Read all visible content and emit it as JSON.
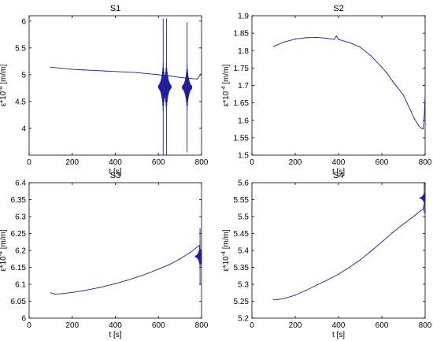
{
  "chart_data": [
    {
      "type": "line",
      "title": "S1",
      "xlabel": "t [s]",
      "ylabel": "ε*10^-4 [m/m]",
      "ylabel_main": "ε*10",
      "ylabel_exp": "-4",
      "ylabel_units": " [m/m]",
      "xlim": [
        0,
        800
      ],
      "ylim": [
        3.5,
        6.1
      ],
      "xticks": [
        0,
        200,
        400,
        600,
        800
      ],
      "yticks": [
        4,
        4.5,
        5,
        5.5,
        6
      ],
      "x": [
        100,
        150,
        200,
        250,
        300,
        350,
        400,
        450,
        500,
        550,
        600,
        620,
        650,
        700,
        750,
        780,
        800
      ],
      "y": [
        5.14,
        5.12,
        5.1,
        5.09,
        5.08,
        5.07,
        5.06,
        5.05,
        5.04,
        5.02,
        5.0,
        4.99,
        4.98,
        4.95,
        4.93,
        4.92,
        5.03
      ],
      "spikes": [
        {
          "x": 622,
          "min": 3.5,
          "max": 6.05
        },
        {
          "x": 637,
          "min": 3.5,
          "max": 6.05
        },
        {
          "x": 733,
          "min": 3.55,
          "max": 5.98
        }
      ],
      "color": "#1f1f9e"
    },
    {
      "type": "line",
      "title": "S2",
      "xlabel": "t [s]",
      "ylabel": "ε*10^-4 [m/m]",
      "ylabel_main": "ε*10",
      "ylabel_exp": "-4",
      "ylabel_units": " [m/m]",
      "xlim": [
        0,
        800
      ],
      "ylim": [
        1.5,
        1.9
      ],
      "xticks": [
        0,
        200,
        400,
        600,
        800
      ],
      "yticks": [
        1.5,
        1.55,
        1.6,
        1.65,
        1.7,
        1.75,
        1.8,
        1.85,
        1.9
      ],
      "x": [
        100,
        150,
        200,
        250,
        300,
        350,
        380,
        390,
        400,
        450,
        500,
        550,
        600,
        620,
        650,
        700,
        720,
        750,
        770,
        780,
        790,
        795,
        800
      ],
      "y": [
        1.812,
        1.825,
        1.833,
        1.837,
        1.838,
        1.835,
        1.832,
        1.842,
        1.832,
        1.823,
        1.81,
        1.785,
        1.752,
        1.738,
        1.712,
        1.672,
        1.645,
        1.605,
        1.585,
        1.578,
        1.575,
        1.6,
        1.67
      ],
      "color": "#1f1f9e"
    },
    {
      "type": "line",
      "title": "S3",
      "xlabel": "t [s]",
      "ylabel": "ε*10^-4 [m/m]",
      "ylabel_main": "ε*10",
      "ylabel_exp": "-4",
      "ylabel_units": " [m/m]",
      "xlim": [
        0,
        800
      ],
      "ylim": [
        6.0,
        6.4
      ],
      "xticks": [
        0,
        200,
        400,
        600,
        800
      ],
      "yticks": [
        6,
        6.05,
        6.1,
        6.15,
        6.2,
        6.25,
        6.3,
        6.35,
        6.4
      ],
      "x": [
        100,
        120,
        150,
        200,
        250,
        300,
        350,
        400,
        450,
        500,
        550,
        600,
        650,
        700,
        750,
        780,
        790,
        800
      ],
      "y": [
        6.075,
        6.071,
        6.072,
        6.076,
        6.081,
        6.087,
        6.094,
        6.102,
        6.111,
        6.121,
        6.132,
        6.145,
        6.158,
        6.175,
        6.195,
        6.21,
        6.215,
        6.15
      ],
      "spikes": [
        {
          "x": 793,
          "min": 6.1,
          "max": 6.265
        }
      ],
      "color": "#1f1f9e"
    },
    {
      "type": "line",
      "title": "S4",
      "xlabel": "t [s]",
      "ylabel": "ε*10^-4 [m/m]",
      "ylabel_main": "ε*10",
      "ylabel_exp": "-4",
      "ylabel_units": " [m/m]",
      "xlim": [
        0,
        800
      ],
      "ylim": [
        5.2,
        5.6
      ],
      "xticks": [
        0,
        200,
        400,
        600,
        800
      ],
      "yticks": [
        5.2,
        5.25,
        5.3,
        5.35,
        5.4,
        5.45,
        5.5,
        5.55,
        5.6
      ],
      "x": [
        100,
        120,
        150,
        200,
        250,
        300,
        350,
        400,
        450,
        500,
        550,
        600,
        650,
        700,
        750,
        780,
        790,
        800
      ],
      "y": [
        5.255,
        5.255,
        5.258,
        5.268,
        5.282,
        5.298,
        5.313,
        5.33,
        5.35,
        5.372,
        5.398,
        5.425,
        5.453,
        5.478,
        5.502,
        5.518,
        5.52,
        5.55
      ],
      "spikes": [
        {
          "x": 796,
          "min": 5.51,
          "max": 5.6
        }
      ],
      "color": "#1f1f9e"
    }
  ]
}
